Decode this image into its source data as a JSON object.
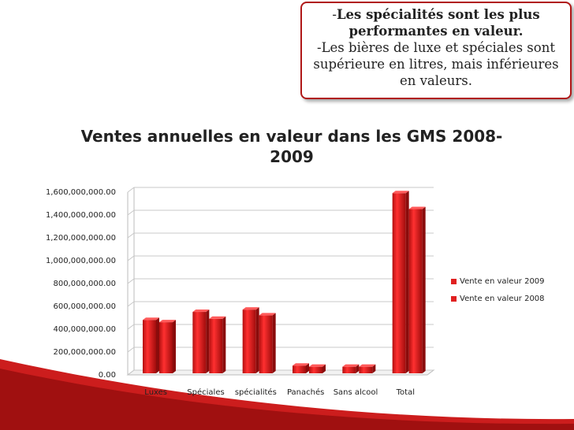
{
  "callout": {
    "line1_prefix": "-",
    "line1_bold": "Les spécialités sont les plus performantes en valeur.",
    "line2": "-Les bières de luxe et spéciales sont supérieure en litres, mais inférieures en valeurs."
  },
  "chart_data": {
    "type": "bar",
    "title": "Ventes annuelles en valeur dans les GMS 2008-2009",
    "categories": [
      "Luxes",
      "Spéciales",
      "spécialités",
      "Panachés",
      "Sans alcool",
      "Total"
    ],
    "series": [
      {
        "name": "Vente en valeur 2009",
        "values": [
          440000000,
          510000000,
          530000000,
          40000000,
          30000000,
          1550000000
        ]
      },
      {
        "name": "Vente en valeur 2008",
        "values": [
          420000000,
          450000000,
          480000000,
          30000000,
          30000000,
          1410000000
        ]
      }
    ],
    "y_ticks": [
      "0.00",
      "200,000,000.00",
      "400,000,000.00",
      "600,000,000.00",
      "800,000,000.00",
      "1,000,000,000.00",
      "1,200,000,000.00",
      "1,400,000,000.00",
      "1,600,000,000.00"
    ],
    "ylim": [
      0,
      1600000000
    ],
    "grid": true,
    "legend_position": "right",
    "colors": {
      "bar": "#e02020",
      "bar_dark": "#8a0c0c",
      "accent": "#b01818"
    }
  }
}
